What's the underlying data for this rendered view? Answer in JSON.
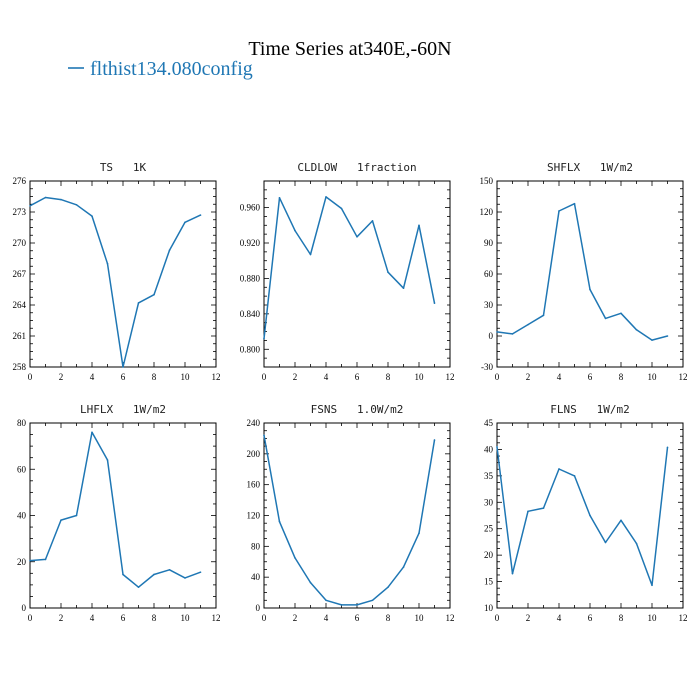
{
  "title": "Time Series at340E,-60N",
  "legend": {
    "label": "flthist134.080config",
    "color": "#1f77b4"
  },
  "chart_data": [
    {
      "type": "line",
      "title": "TS   1K",
      "xlim": [
        0,
        12
      ],
      "ylim": [
        258,
        276
      ],
      "xticks": [
        0,
        2,
        4,
        6,
        8,
        10,
        12
      ],
      "yticks": [
        258,
        261,
        264,
        267,
        270,
        273,
        276
      ],
      "series": [
        {
          "name": "flthist134.080config",
          "x": [
            0,
            1,
            2,
            3,
            4,
            5,
            6,
            7,
            8,
            9,
            10,
            11
          ],
          "values": [
            273.6,
            274.4,
            274.2,
            273.7,
            272.6,
            268.0,
            258.0,
            264.2,
            265.0,
            269.3,
            272.0,
            272.7
          ]
        }
      ]
    },
    {
      "type": "line",
      "title": "CLDLOW   1fraction",
      "xlim": [
        0,
        12
      ],
      "ylim": [
        0.78,
        0.99
      ],
      "xticks": [
        0,
        2,
        4,
        6,
        8,
        10,
        12
      ],
      "yticks": [
        0.8,
        0.84,
        0.88,
        0.92,
        0.96
      ],
      "ytick_labels": [
        "0.800",
        "0.840",
        "0.880",
        "0.920",
        "0.960"
      ],
      "series": [
        {
          "name": "flthist134.080config",
          "x": [
            0,
            1,
            2,
            3,
            4,
            5,
            6,
            7,
            8,
            9,
            10,
            11
          ],
          "values": [
            0.812,
            0.971,
            0.934,
            0.907,
            0.972,
            0.959,
            0.927,
            0.945,
            0.887,
            0.869,
            0.94,
            0.852
          ]
        }
      ]
    },
    {
      "type": "line",
      "title": "SHFLX   1W/m2",
      "xlim": [
        0,
        12
      ],
      "ylim": [
        -30,
        150
      ],
      "xticks": [
        0,
        2,
        4,
        6,
        8,
        10,
        12
      ],
      "yticks": [
        -30,
        0,
        30,
        60,
        90,
        120,
        150
      ],
      "series": [
        {
          "name": "flthist134.080config",
          "x": [
            0,
            1,
            2,
            3,
            4,
            5,
            6,
            7,
            8,
            9,
            10,
            11
          ],
          "values": [
            4,
            2,
            11,
            20,
            121,
            128,
            45,
            17,
            22,
            6,
            -4,
            0
          ]
        }
      ]
    },
    {
      "type": "line",
      "title": "LHFLX   1W/m2",
      "xlim": [
        0,
        12
      ],
      "ylim": [
        0,
        80
      ],
      "xticks": [
        0,
        2,
        4,
        6,
        8,
        10,
        12
      ],
      "yticks": [
        0,
        20,
        40,
        60,
        80
      ],
      "series": [
        {
          "name": "flthist134.080config",
          "x": [
            0,
            1,
            2,
            3,
            4,
            5,
            6,
            7,
            8,
            9,
            10,
            11
          ],
          "values": [
            20.5,
            21,
            38,
            40,
            76,
            64,
            14.5,
            9,
            14.5,
            16.5,
            13,
            15.5
          ]
        }
      ]
    },
    {
      "type": "line",
      "title": "FSNS   1.0W/m2",
      "xlim": [
        0,
        12
      ],
      "ylim": [
        0,
        240
      ],
      "xticks": [
        0,
        2,
        4,
        6,
        8,
        10,
        12
      ],
      "yticks": [
        0,
        40,
        80,
        120,
        160,
        200,
        240
      ],
      "series": [
        {
          "name": "flthist134.080config",
          "x": [
            0,
            1,
            2,
            3,
            4,
            5,
            6,
            7,
            8,
            9,
            10,
            11
          ],
          "values": [
            224,
            112,
            65,
            33,
            10,
            4,
            4,
            10,
            27,
            53,
            97,
            218
          ]
        }
      ]
    },
    {
      "type": "line",
      "title": "FLNS   1W/m2",
      "xlim": [
        0,
        12
      ],
      "ylim": [
        10,
        45
      ],
      "xticks": [
        0,
        2,
        4,
        6,
        8,
        10,
        12
      ],
      "yticks": [
        10,
        15,
        20,
        25,
        30,
        35,
        40,
        45
      ],
      "series": [
        {
          "name": "flthist134.080config",
          "x": [
            0,
            1,
            2,
            3,
            4,
            5,
            6,
            7,
            8,
            9,
            10,
            11
          ],
          "values": [
            40.5,
            16.5,
            28.3,
            28.9,
            36.3,
            35.0,
            27.5,
            22.4,
            26.6,
            22.2,
            14.3,
            40.4
          ]
        }
      ]
    }
  ]
}
